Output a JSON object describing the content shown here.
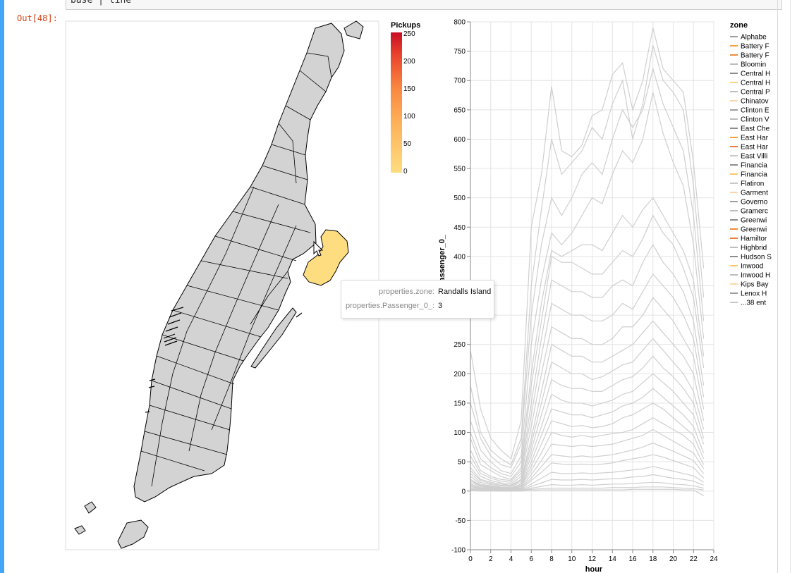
{
  "notebook": {
    "code_line": "base | line",
    "out_prompt": "Out[48]:"
  },
  "colors": {
    "zone_fill": "#d3d3d3",
    "zone_stroke": "#000000",
    "highlight": "#fedd80",
    "line_grey": "#cfcfcf"
  },
  "chart_data": [
    {
      "type": "choropleth",
      "title": "",
      "legend": {
        "title": "Pickups",
        "ticks": [
          "250",
          "200",
          "150",
          "100",
          "50",
          "0"
        ],
        "domain": [
          0,
          250
        ],
        "scheme": "yelloworangered",
        "placement": "top-right"
      },
      "highlighted_zone": "Randalls Island",
      "tooltip": [
        {
          "field": "properties.zone:",
          "value": "Randalls Island"
        },
        {
          "field": "properties.Passenger_0_:",
          "value": "3"
        }
      ]
    },
    {
      "type": "line",
      "xlabel": "hour",
      "ylabel": "Passenger_0_",
      "xlim": [
        0,
        24
      ],
      "ylim": [
        -100,
        800
      ],
      "xticks": [
        "0",
        "2",
        "4",
        "6",
        "8",
        "10",
        "12",
        "14",
        "16",
        "18",
        "20",
        "22",
        "24"
      ],
      "yticks": [
        "800",
        "750",
        "700",
        "650",
        "600",
        "550",
        "500",
        "450",
        "400",
        "350",
        "300",
        "250",
        "200",
        "150",
        "100",
        "50",
        "0",
        "-50",
        "-100"
      ],
      "grid": true,
      "legend": {
        "title": "zone",
        "placement": "right",
        "entries": [
          {
            "label": "Alphabe",
            "color": "#9e9e9e"
          },
          {
            "label": "Battery F",
            "color": "#f4a340"
          },
          {
            "label": "Battery F",
            "color": "#f28a3a"
          },
          {
            "label": "Bloomin",
            "color": "#bdbdbd"
          },
          {
            "label": "Central H",
            "color": "#8c8c8c"
          },
          {
            "label": "Central H",
            "color": "#fcd47c"
          },
          {
            "label": "Central P",
            "color": "#bdbdbd"
          },
          {
            "label": "Chinatov",
            "color": "#fbd7a8"
          },
          {
            "label": "Clinton E",
            "color": "#9e9e9e"
          },
          {
            "label": "Clinton V",
            "color": "#bdbdbd"
          },
          {
            "label": "East Che",
            "color": "#8c8c8c"
          },
          {
            "label": "East Har",
            "color": "#f4a340"
          },
          {
            "label": "East Har",
            "color": "#f07e3a"
          },
          {
            "label": "East Villi",
            "color": "#c8c8c8"
          },
          {
            "label": "Financia",
            "color": "#8c8c8c"
          },
          {
            "label": "Financia",
            "color": "#fcc864"
          },
          {
            "label": "Flatiron",
            "color": "#c8c8c8"
          },
          {
            "label": "Garment",
            "color": "#fbd7a8"
          },
          {
            "label": "Governo",
            "color": "#9e9e9e"
          },
          {
            "label": "Gramerc",
            "color": "#bdbdbd"
          },
          {
            "label": "Greenwi",
            "color": "#8c8c8c"
          },
          {
            "label": "Greenwi",
            "color": "#f28a3a"
          },
          {
            "label": "Hamiltor",
            "color": "#f07e3a"
          },
          {
            "label": "Highbrid",
            "color": "#bdbdbd"
          },
          {
            "label": "Hudson S",
            "color": "#8c8c8c"
          },
          {
            "label": "Inwood",
            "color": "#fcc864"
          },
          {
            "label": "Inwood H",
            "color": "#bdbdbd"
          },
          {
            "label": "Kips Bay",
            "color": "#fbd7a8"
          },
          {
            "label": "Lenox H",
            "color": "#9e9e9e"
          },
          {
            "label": "...38 ent",
            "color": "#c8c8c8"
          }
        ]
      },
      "hours": [
        0,
        1,
        2,
        3,
        4,
        5,
        6,
        7,
        8,
        9,
        10,
        11,
        12,
        13,
        14,
        15,
        16,
        17,
        18,
        19,
        20,
        21,
        22,
        23
      ],
      "series": [
        {
          "values": [
            240,
            140,
            90,
            70,
            55,
            120,
            450,
            540,
            690,
            580,
            570,
            590,
            640,
            650,
            710,
            730,
            650,
            700,
            790,
            720,
            700,
            680,
            560,
            380
          ]
        },
        {
          "values": [
            180,
            100,
            70,
            55,
            45,
            90,
            350,
            480,
            600,
            540,
            560,
            580,
            620,
            600,
            660,
            700,
            600,
            660,
            760,
            700,
            680,
            650,
            520,
            330
          ]
        },
        {
          "values": [
            150,
            90,
            60,
            45,
            40,
            80,
            300,
            420,
            500,
            470,
            500,
            540,
            560,
            540,
            600,
            650,
            620,
            650,
            720,
            660,
            620,
            580,
            470,
            290
          ]
        },
        {
          "values": [
            120,
            70,
            50,
            35,
            30,
            60,
            250,
            360,
            440,
            420,
            440,
            470,
            500,
            490,
            540,
            580,
            560,
            600,
            680,
            610,
            560,
            520,
            420,
            260
          ]
        },
        {
          "values": [
            100,
            55,
            40,
            30,
            25,
            50,
            200,
            320,
            410,
            400,
            410,
            420,
            420,
            410,
            440,
            470,
            450,
            480,
            500,
            470,
            440,
            410,
            360,
            230
          ]
        },
        {
          "values": [
            90,
            45,
            35,
            25,
            20,
            40,
            180,
            290,
            400,
            390,
            390,
            380,
            370,
            370,
            390,
            410,
            400,
            430,
            470,
            440,
            420,
            380,
            330,
            210
          ]
        },
        {
          "values": [
            70,
            35,
            25,
            20,
            18,
            35,
            150,
            260,
            360,
            350,
            340,
            340,
            330,
            330,
            350,
            360,
            350,
            390,
            420,
            390,
            370,
            340,
            290,
            180
          ]
        },
        {
          "values": [
            60,
            30,
            22,
            17,
            15,
            30,
            130,
            230,
            320,
            310,
            300,
            300,
            290,
            290,
            300,
            320,
            310,
            340,
            370,
            350,
            330,
            300,
            260,
            160
          ]
        },
        {
          "values": [
            50,
            25,
            18,
            14,
            12,
            25,
            110,
            200,
            280,
            270,
            260,
            260,
            250,
            250,
            260,
            280,
            280,
            300,
            330,
            310,
            290,
            260,
            230,
            140
          ]
        },
        {
          "values": [
            40,
            20,
            15,
            12,
            10,
            20,
            90,
            170,
            250,
            240,
            230,
            230,
            220,
            220,
            230,
            240,
            250,
            270,
            290,
            270,
            250,
            230,
            200,
            120
          ]
        },
        {
          "values": [
            35,
            18,
            13,
            10,
            9,
            18,
            80,
            150,
            220,
            210,
            200,
            200,
            190,
            195,
            205,
            215,
            220,
            240,
            260,
            240,
            220,
            200,
            170,
            105
          ]
        },
        {
          "values": [
            30,
            15,
            11,
            9,
            8,
            15,
            70,
            130,
            190,
            180,
            175,
            175,
            170,
            170,
            180,
            190,
            195,
            210,
            230,
            210,
            195,
            175,
            150,
            90
          ]
        },
        {
          "values": [
            25,
            12,
            9,
            7,
            6,
            12,
            60,
            110,
            165,
            155,
            150,
            150,
            145,
            150,
            155,
            165,
            170,
            185,
            200,
            185,
            170,
            150,
            130,
            80
          ]
        },
        {
          "values": [
            20,
            10,
            8,
            6,
            5,
            10,
            50,
            95,
            140,
            135,
            130,
            130,
            125,
            130,
            135,
            145,
            150,
            160,
            175,
            160,
            145,
            130,
            110,
            65
          ]
        },
        {
          "values": [
            18,
            9,
            7,
            5,
            4,
            9,
            42,
            80,
            120,
            115,
            110,
            112,
            108,
            110,
            115,
            125,
            130,
            140,
            150,
            140,
            125,
            110,
            95,
            55
          ]
        },
        {
          "values": [
            15,
            8,
            6,
            4,
            3,
            8,
            35,
            65,
            100,
            95,
            92,
            95,
            92,
            95,
            98,
            100,
            105,
            115,
            125,
            115,
            105,
            95,
            80,
            45
          ]
        },
        {
          "values": [
            12,
            6,
            5,
            3,
            3,
            6,
            28,
            52,
            80,
            78,
            76,
            78,
            76,
            78,
            80,
            85,
            90,
            95,
            105,
            95,
            85,
            75,
            65,
            38
          ]
        },
        {
          "values": [
            10,
            5,
            4,
            3,
            2,
            5,
            22,
            42,
            62,
            60,
            58,
            60,
            58,
            60,
            62,
            66,
            70,
            75,
            82,
            75,
            68,
            60,
            52,
            30
          ]
        },
        {
          "values": [
            8,
            4,
            3,
            2,
            2,
            4,
            18,
            32,
            48,
            46,
            45,
            46,
            45,
            46,
            48,
            52,
            55,
            58,
            62,
            58,
            52,
            46,
            40,
            22
          ]
        },
        {
          "values": [
            6,
            3,
            2,
            2,
            1,
            3,
            12,
            22,
            32,
            30,
            30,
            31,
            30,
            31,
            32,
            34,
            36,
            38,
            42,
            38,
            34,
            30,
            26,
            15
          ]
        },
        {
          "values": [
            4,
            2,
            2,
            1,
            1,
            2,
            8,
            14,
            20,
            19,
            19,
            20,
            19,
            20,
            21,
            22,
            24,
            25,
            28,
            25,
            22,
            20,
            17,
            10
          ]
        },
        {
          "values": [
            3,
            2,
            1,
            1,
            1,
            1,
            5,
            8,
            11,
            10,
            10,
            11,
            10,
            11,
            12,
            12,
            13,
            14,
            15,
            14,
            12,
            11,
            9,
            5
          ]
        },
        {
          "values": [
            2,
            1,
            1,
            0,
            0,
            1,
            3,
            4,
            5,
            5,
            5,
            5,
            5,
            5,
            6,
            6,
            6,
            7,
            7,
            7,
            6,
            5,
            4,
            2
          ]
        },
        {
          "values": [
            1,
            0,
            0,
            0,
            0,
            0,
            1,
            2,
            2,
            2,
            2,
            2,
            2,
            2,
            2,
            2,
            3,
            3,
            3,
            3,
            3,
            2,
            2,
            -8
          ]
        }
      ]
    }
  ]
}
